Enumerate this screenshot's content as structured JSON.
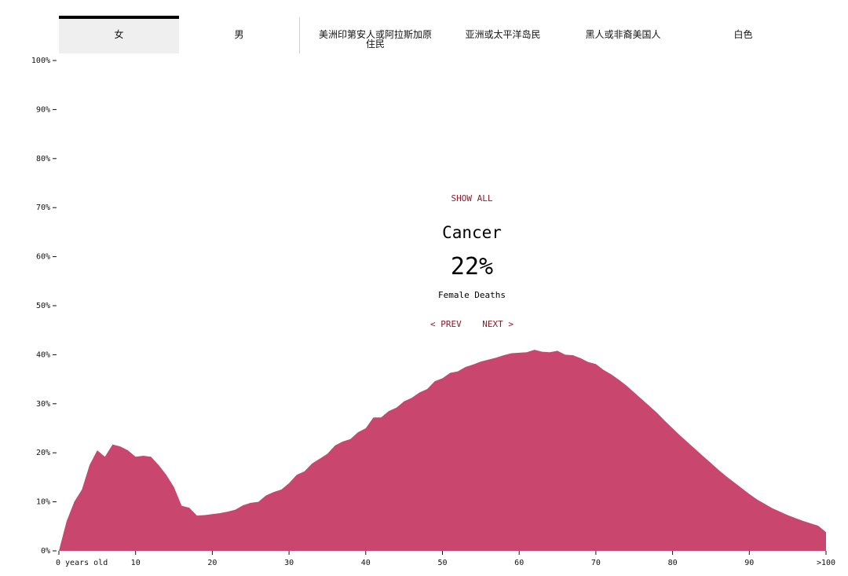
{
  "tabs": [
    "女",
    "男",
    "美洲印第安人或阿拉斯加原住民",
    "亚洲或太平洋岛民",
    "黑人或非裔美国人",
    "白色"
  ],
  "show_all": "SHOW ALL",
  "cause": "Cancer",
  "share": "22%",
  "subtitle": "Female Deaths",
  "prev": "< PREV",
  "next": "NEXT >",
  "chart_data": {
    "type": "area",
    "color": "#c9466f",
    "x": [
      0,
      1,
      2,
      3,
      4,
      5,
      6,
      7,
      8,
      9,
      10,
      11,
      12,
      13,
      14,
      15,
      16,
      17,
      18,
      19,
      20,
      21,
      22,
      23,
      24,
      25,
      26,
      27,
      28,
      29,
      30,
      31,
      32,
      33,
      34,
      35,
      36,
      37,
      38,
      39,
      40,
      41,
      42,
      43,
      44,
      45,
      46,
      47,
      48,
      49,
      50,
      51,
      52,
      53,
      54,
      55,
      56,
      57,
      58,
      59,
      60,
      61,
      62,
      63,
      64,
      65,
      66,
      67,
      68,
      69,
      70,
      71,
      72,
      73,
      74,
      75,
      76,
      77,
      78,
      79,
      80,
      81,
      82,
      83,
      84,
      85,
      86,
      87,
      88,
      89,
      90,
      91,
      92,
      93,
      94,
      95,
      96,
      97,
      98,
      99,
      100
    ],
    "values": [
      0,
      6,
      10,
      12.5,
      17.5,
      20.5,
      19.2,
      21.7,
      21.3,
      20.5,
      19.2,
      19.4,
      19.2,
      17.5,
      15.5,
      13,
      9.2,
      8.8,
      7.2,
      7.3,
      7.5,
      7.7,
      8.0,
      8.4,
      9.3,
      9.8,
      10.0,
      11.3,
      12.0,
      12.5,
      13.8,
      15.5,
      16.2,
      17.8,
      18.8,
      19.8,
      21.5,
      22.3,
      22.8,
      24.2,
      25.0,
      27.2,
      27.2,
      28.5,
      29.2,
      30.5,
      31.2,
      32.3,
      33.0,
      34.6,
      35.2,
      36.3,
      36.6,
      37.5,
      38.0,
      38.6,
      39.0,
      39.4,
      39.9,
      40.3,
      40.4,
      40.5,
      41.0,
      40.6,
      40.5,
      40.8,
      40.0,
      39.9,
      39.3,
      38.5,
      38.1,
      36.9,
      36.0,
      34.9,
      33.7,
      32.3,
      30.9,
      29.5,
      28.1,
      26.5,
      25.0,
      23.5,
      22.1,
      20.7,
      19.3,
      17.9,
      16.5,
      15.2,
      14.0,
      12.8,
      11.6,
      10.5,
      9.6,
      8.7,
      8.0,
      7.3,
      6.7,
      6.1,
      5.6,
      5.1,
      3.8
    ],
    "xlim": [
      0,
      100
    ],
    "xticks": [
      {
        "value": 0,
        "label": "0 years old"
      },
      10,
      20,
      30,
      40,
      50,
      60,
      70,
      80,
      90,
      {
        "value": 100,
        "label": ">100"
      }
    ],
    "ylim": [
      0,
      100
    ],
    "yticks": [
      {
        "value": 0,
        "label": "0%"
      },
      {
        "value": 10,
        "label": "10%"
      },
      {
        "value": 20,
        "label": "20%"
      },
      {
        "value": 30,
        "label": "30%"
      },
      {
        "value": 40,
        "label": "40%"
      },
      {
        "value": 50,
        "label": "50%"
      },
      {
        "value": 60,
        "label": "60%"
      },
      {
        "value": 70,
        "label": "70%"
      },
      {
        "value": 80,
        "label": "80%"
      },
      {
        "value": 90,
        "label": "90%"
      },
      {
        "value": 100,
        "label": "100%"
      }
    ]
  }
}
